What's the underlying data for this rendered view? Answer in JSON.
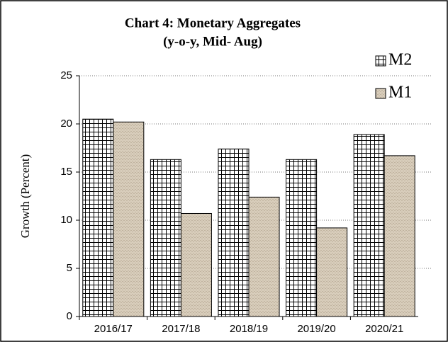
{
  "chart_data": {
    "type": "bar",
    "title": "Chart  4:  Monetary Aggregates",
    "subtitle": "(y-o-y,  Mid- Aug)",
    "y_label": "Growth (Percent)",
    "categories": [
      "2016/17",
      "2017/18",
      "2018/19",
      "2019/20",
      "2020/21"
    ],
    "series": [
      {
        "name": "M2",
        "color": "#ffffff",
        "values": [
          20.5,
          16.3,
          17.4,
          16.3,
          18.9
        ]
      },
      {
        "name": "M1",
        "color": "#d8cdbb",
        "values": [
          20.2,
          10.7,
          12.4,
          9.2,
          16.7
        ]
      }
    ],
    "ylim": [
      0,
      25
    ],
    "yticks": [
      0,
      5,
      10,
      15,
      20,
      25
    ],
    "grid": true,
    "legend": "top-right"
  }
}
